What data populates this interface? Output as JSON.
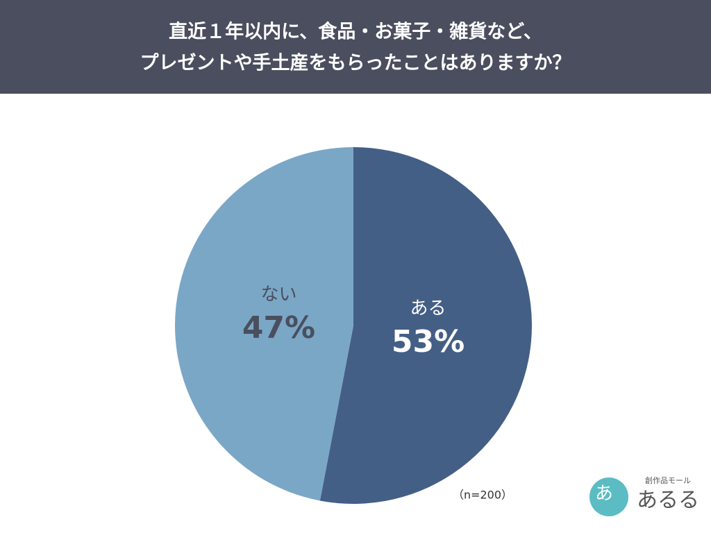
{
  "chart_data": {
    "type": "pie",
    "title": [
      "直近１年以内に、食品・お菓子・雑貨など、",
      "プレゼントや手土産をもらったことはありますか？"
    ],
    "categories": [
      "ある",
      "ない"
    ],
    "values": [
      53,
      47
    ],
    "value_labels": [
      "53%",
      "47%"
    ],
    "colors": [
      "#445f86",
      "#7ba7c7"
    ],
    "label_colors": [
      "#ffffff",
      "#4a4f5e"
    ],
    "note": "（n=200）"
  },
  "logo": {
    "tagline": "創作品モール",
    "name": "あるる",
    "mark": "あ"
  }
}
